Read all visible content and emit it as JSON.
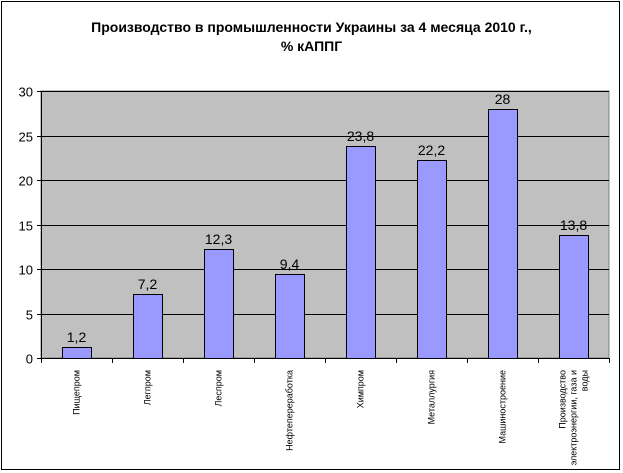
{
  "chart_data": {
    "type": "bar",
    "title_line1": "Производство в промышленности Украины за 4 месяца 2010 г.,",
    "title_line2": "% кАППГ",
    "categories": [
      [
        "Пищепром"
      ],
      [
        "Легпром"
      ],
      [
        "Леспром"
      ],
      [
        "Нефтепереработка"
      ],
      [
        "Химпром"
      ],
      [
        "Металлургия"
      ],
      [
        "Машиностроение"
      ],
      [
        "Производство",
        "электроэнергии, газа и",
        "воды"
      ]
    ],
    "values": [
      1.2,
      7.2,
      12.3,
      9.4,
      23.8,
      22.2,
      28,
      13.8
    ],
    "value_labels": [
      "1,2",
      "7,2",
      "12,3",
      "9,4",
      "23,8",
      "22,2",
      "28",
      "13,8"
    ],
    "ylim": [
      0,
      30
    ],
    "yticks": [
      0,
      5,
      10,
      15,
      20,
      25,
      30
    ],
    "grid": true,
    "bar_color": "#9999ff",
    "plot_background": "#c0c0c0"
  }
}
